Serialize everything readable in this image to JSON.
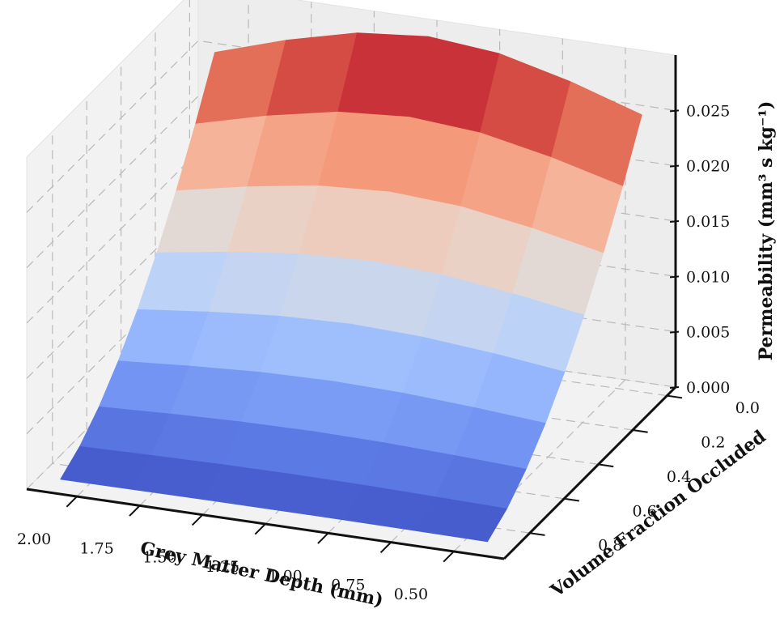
{
  "chart_data": {
    "type": "surface",
    "colormap": "coolwarm",
    "x_axis": {
      "label": "Grey Matter Depth (mm)",
      "values": [
        2.0,
        1.75,
        1.5,
        1.25,
        1.0,
        0.75,
        0.5
      ],
      "ticks": [
        "2.00",
        "1.75",
        "1.50",
        "1.25",
        "1.00",
        "0.75",
        "0.50"
      ]
    },
    "y_axis": {
      "label": "Volume Fraction Occluded",
      "values": [
        0.8,
        0.6,
        0.4,
        0.2,
        0.0
      ],
      "ticks": [
        "0.0",
        "0.2",
        "0.4",
        "0.6",
        "0.8"
      ]
    },
    "z_axis": {
      "label": "Permeability (mm³ s kg⁻¹)",
      "range": [
        0,
        0.03
      ],
      "ticks": [
        "0.000",
        "0.005",
        "0.010",
        "0.015",
        "0.020",
        "0.025"
      ]
    },
    "z_max": 0.03,
    "grid": true
  }
}
